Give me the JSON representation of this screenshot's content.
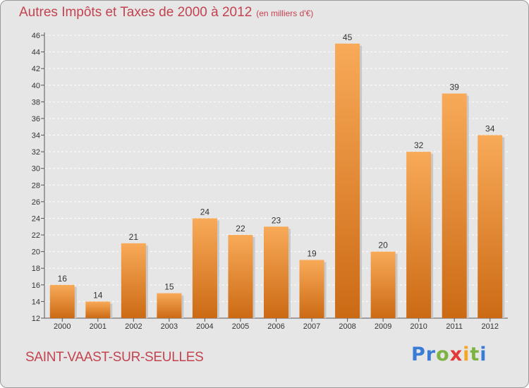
{
  "header": {
    "title": "Autres Impôts et Taxes de 2000 à 2012",
    "unit": "(en milliers d'€)"
  },
  "footer": {
    "city": "SAINT-VAAST-SUR-SEULLES",
    "logo": [
      "P",
      "r",
      "o",
      "x",
      "i",
      "t",
      "i"
    ]
  },
  "colors": {
    "title": "#c3434f",
    "bar_top": "#f8aa58",
    "bar_bottom": "#cc6a14",
    "logo": [
      "#3a7bd5",
      "#3a7bd5",
      "#7cb342",
      "#e53935",
      "#f5a623",
      "#7cb342",
      "#3a7bd5"
    ]
  },
  "chart_data": {
    "type": "bar",
    "categories": [
      "2000",
      "2001",
      "2002",
      "2003",
      "2004",
      "2005",
      "2006",
      "2007",
      "2008",
      "2009",
      "2010",
      "2011",
      "2012"
    ],
    "values": [
      16,
      14,
      21,
      15,
      24,
      22,
      23,
      19,
      45,
      20,
      32,
      39,
      34
    ],
    "title": "Autres Impôts et Taxes de 2000 à 2012",
    "ylim": [
      12,
      46
    ],
    "yticks": [
      12,
      14,
      16,
      18,
      20,
      22,
      24,
      26,
      28,
      30,
      32,
      34,
      36,
      38,
      40,
      42,
      44,
      46
    ],
    "grid": true,
    "data_labels": true
  }
}
